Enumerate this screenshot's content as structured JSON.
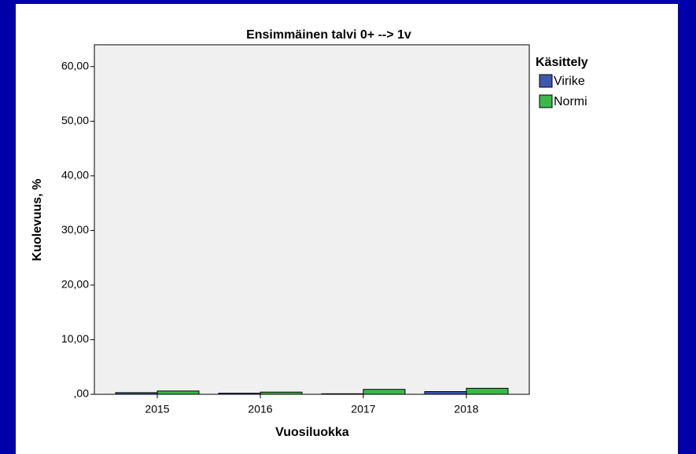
{
  "chart_data": {
    "type": "bar",
    "title": "Ensimmäinen talvi 0+ --> 1v",
    "x_label": "Vuosiluokka",
    "y_label": "Kuolevuus, %",
    "legend_title": "Käsittely",
    "categories": [
      "2015",
      "2016",
      "2017",
      "2018"
    ],
    "series": [
      {
        "name": "Virike",
        "color": "#3e58ac",
        "values": [
          0.3,
          0.2,
          0.1,
          0.5
        ]
      },
      {
        "name": "Normi",
        "color": "#3cb84a",
        "values": [
          0.6,
          0.4,
          0.9,
          1.1
        ]
      }
    ],
    "ylim": [
      0,
      64
    ],
    "yticks": [
      {
        "value": 0,
        "label": ",00"
      },
      {
        "value": 10,
        "label": "10,00"
      },
      {
        "value": 20,
        "label": "20,00"
      },
      {
        "value": 30,
        "label": "30,00"
      },
      {
        "value": 40,
        "label": "40,00"
      },
      {
        "value": 50,
        "label": "50,00"
      },
      {
        "value": 60,
        "label": "60,00"
      }
    ],
    "legend_position": "right"
  }
}
